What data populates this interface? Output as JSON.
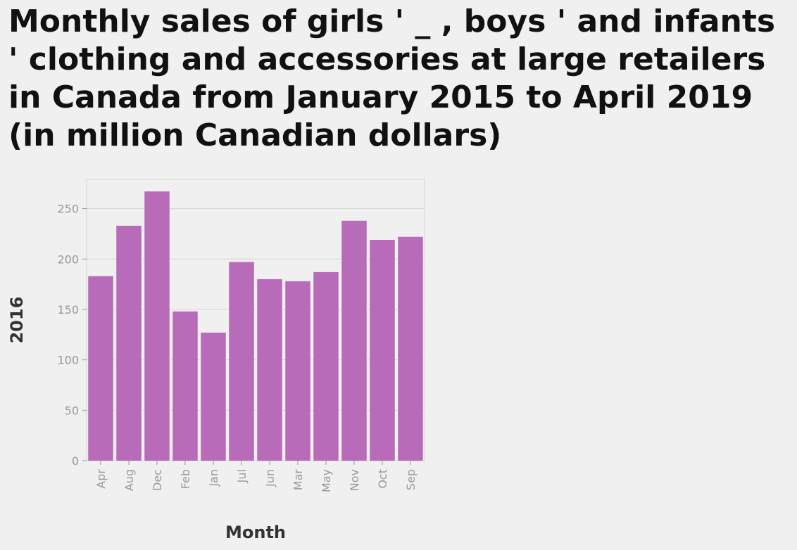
{
  "chart_data": {
    "type": "bar",
    "title": "Monthly sales of girls ' _ , boys ' and infants ' clothing and accessories at large retailers in Canada from January 2015 to April 2019 (in million Canadian dollars)",
    "xlabel": "Month",
    "ylabel": "2016",
    "categories": [
      "Apr",
      "Aug",
      "Dec",
      "Feb",
      "Jan",
      "Jul",
      "Jun",
      "Mar",
      "May",
      "Nov",
      "Oct",
      "Sep"
    ],
    "values": [
      183,
      233,
      267,
      148,
      127,
      197,
      180,
      178,
      187,
      238,
      219,
      222
    ],
    "yticks": [
      0,
      50,
      100,
      150,
      200,
      250
    ],
    "ylim": [
      0,
      279
    ],
    "grid": true,
    "bar_color": "#b76bb8"
  }
}
